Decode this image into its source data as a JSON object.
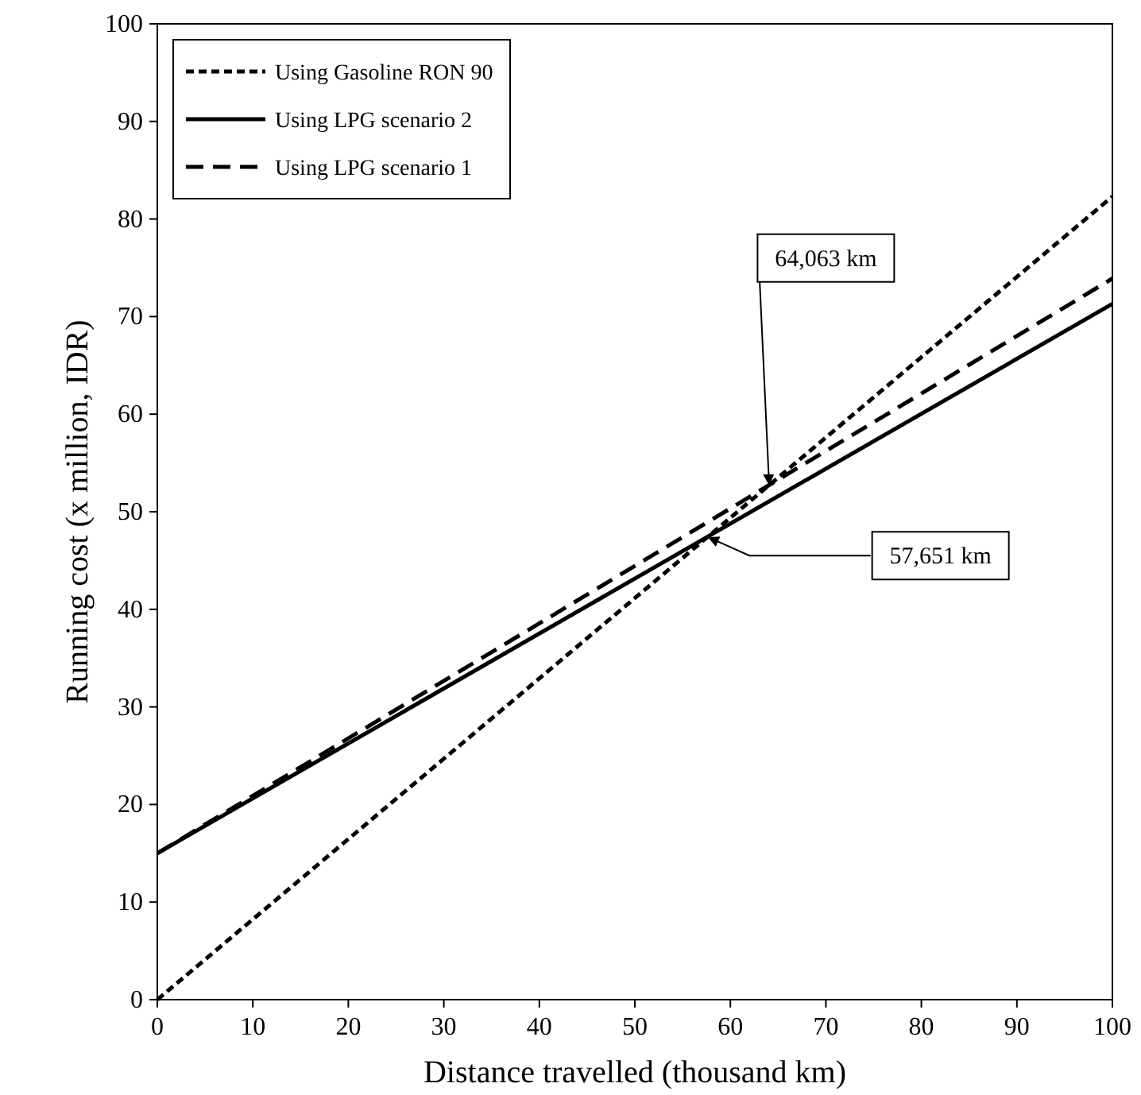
{
  "chart_data": {
    "type": "line",
    "xlabel": "Distance travelled (thousand km)",
    "ylabel": "Running cost (x million, IDR)",
    "x": [
      0,
      100
    ],
    "series": [
      {
        "name": "Using Gasoline RON 90",
        "color": "#000000",
        "values": [
          0,
          82.3
        ],
        "line_style": "dotted"
      },
      {
        "name": "Using LPG scenario 2",
        "color": "#000000",
        "values": [
          15,
          71.3
        ],
        "line_style": "solid"
      },
      {
        "name": "Using LPG scenario 1",
        "color": "#000000",
        "values": [
          15,
          73.9
        ],
        "line_style": "dashed"
      }
    ],
    "xlim": [
      0,
      100
    ],
    "xticks": [
      0,
      10,
      20,
      30,
      40,
      50,
      60,
      70,
      80,
      90,
      100
    ],
    "ylim": [
      0,
      100
    ],
    "yticks": [
      0,
      10,
      20,
      30,
      40,
      50,
      60,
      70,
      80,
      90,
      100
    ],
    "annotations": [
      {
        "text": "64,063 km",
        "x": 64.063,
        "y": 52.7
      },
      {
        "text": "57,651 km",
        "x": 57.651,
        "y": 47.4
      }
    ],
    "grid": false,
    "legend": "top left"
  }
}
